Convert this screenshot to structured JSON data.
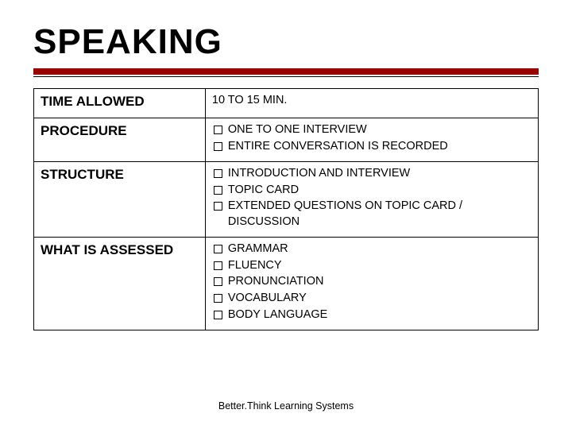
{
  "title": "SPEAKING",
  "colors": {
    "accent": "#990000",
    "border": "#000000",
    "background": "#ffffff",
    "text": "#000000"
  },
  "typography": {
    "title_fontsize": 44,
    "title_weight": 900,
    "label_fontsize": 17,
    "cell_fontsize": 14.5,
    "footer_fontsize": 12.5
  },
  "table": {
    "rows": [
      {
        "label": "TIME ALLOWED",
        "type": "text",
        "value": "10 TO 15 MIN."
      },
      {
        "label": "PROCEDURE",
        "type": "list",
        "items": [
          "ONE TO ONE INTERVIEW",
          "ENTIRE CONVERSATION IS RECORDED"
        ]
      },
      {
        "label": "STRUCTURE",
        "type": "list",
        "items": [
          "INTRODUCTION AND INTERVIEW",
          "TOPIC CARD",
          "EXTENDED QUESTIONS ON TOPIC CARD / DISCUSSION"
        ]
      },
      {
        "label": "WHAT IS ASSESSED",
        "type": "list",
        "items": [
          "GRAMMAR",
          "FLUENCY",
          "PRONUNCIATION",
          "VOCABULARY",
          "BODY LANGUAGE"
        ]
      }
    ]
  },
  "footer": "Better.Think Learning Systems"
}
